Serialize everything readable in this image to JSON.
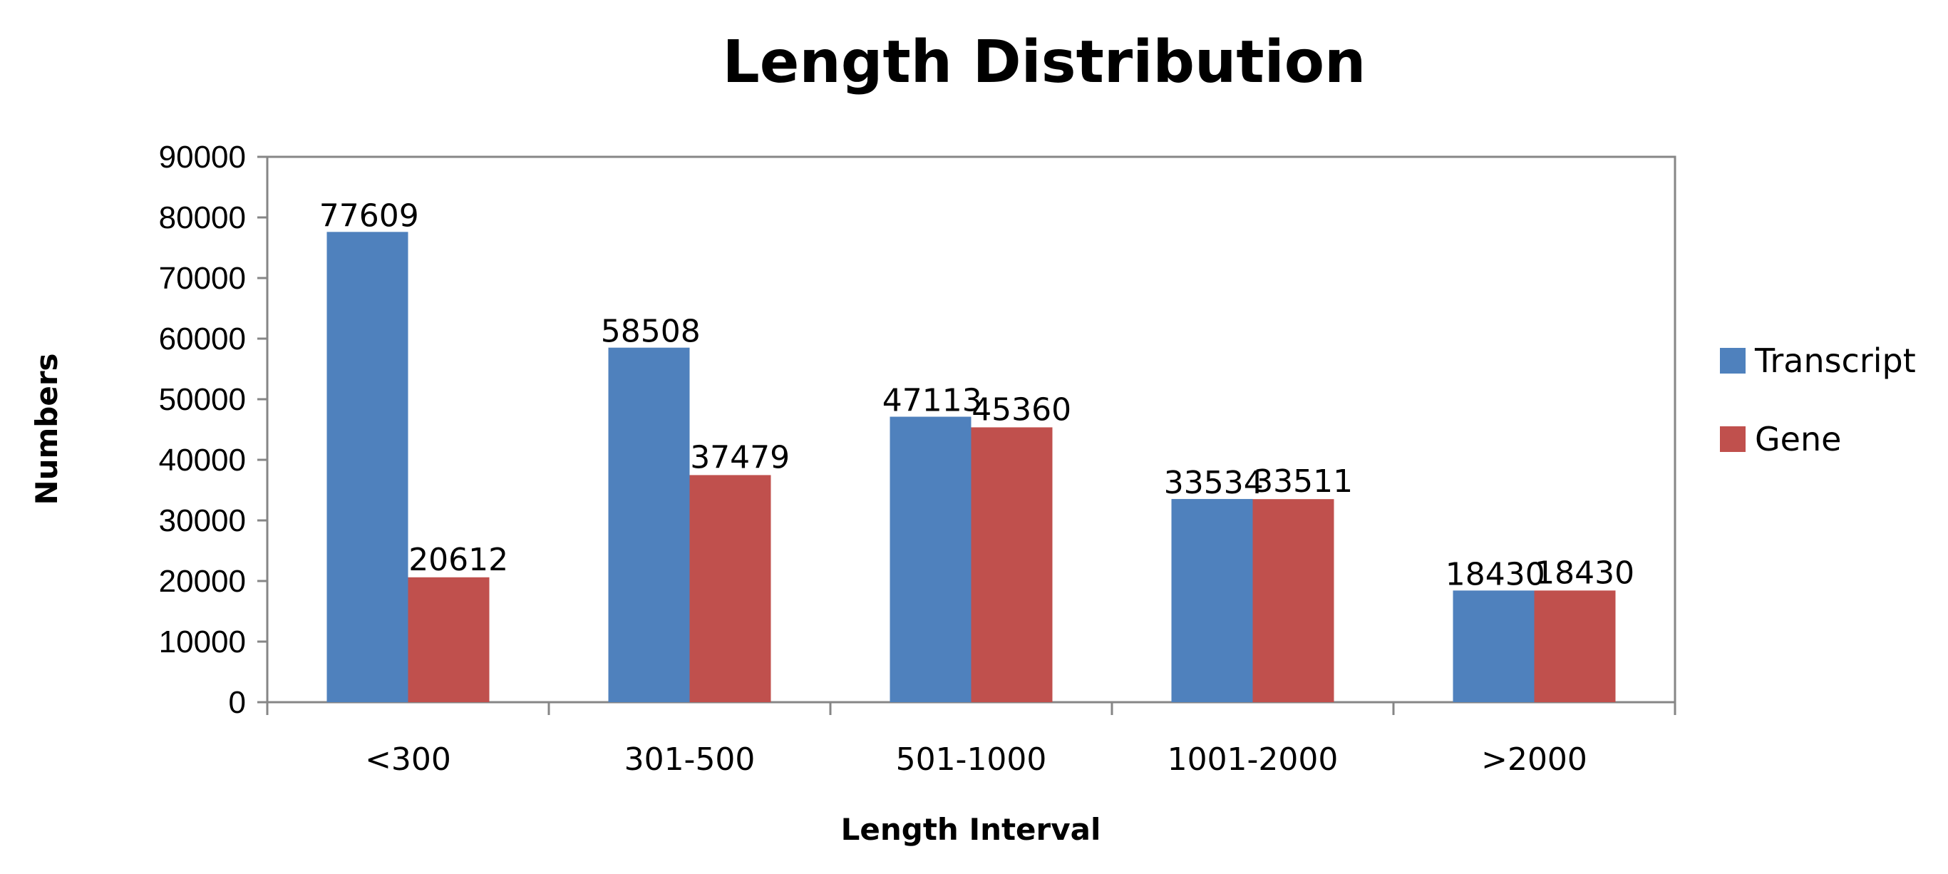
{
  "chart_data": {
    "type": "bar",
    "title": "Length Distribution",
    "xlabel": "Length Interval",
    "ylabel": "Numbers",
    "ylim": [
      0,
      90000
    ],
    "yticks": [
      0,
      10000,
      20000,
      30000,
      40000,
      50000,
      60000,
      70000,
      80000,
      90000
    ],
    "categories": [
      "<300",
      "301-500",
      "501-1000",
      "1001-2000",
      ">2000"
    ],
    "series": [
      {
        "name": "Transcript",
        "color": "#4F81BD",
        "values": [
          77609,
          58508,
          47113,
          33534,
          18430
        ]
      },
      {
        "name": "Gene",
        "color": "#C0504D",
        "values": [
          20612,
          37479,
          45360,
          33511,
          18430
        ]
      }
    ],
    "grid": false,
    "legend": "right"
  }
}
